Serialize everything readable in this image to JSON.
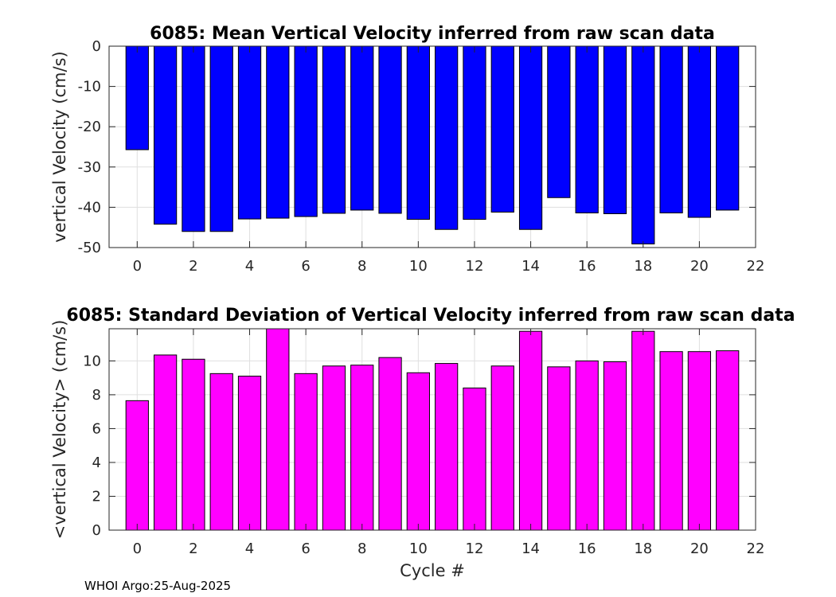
{
  "chart_data": [
    {
      "type": "bar",
      "title": "6085: Mean Vertical Velocity inferred from raw scan data",
      "xlabel": "",
      "ylabel": "vertical Velocity (cm/s)",
      "color": "#0000ff",
      "x": [
        0,
        1,
        2,
        3,
        4,
        5,
        6,
        7,
        8,
        9,
        10,
        11,
        12,
        13,
        14,
        15,
        16,
        17,
        18,
        19,
        20,
        21
      ],
      "values": [
        -25.7,
        -44.2,
        -46.0,
        -46.0,
        -42.9,
        -42.7,
        -42.3,
        -41.5,
        -40.7,
        -41.5,
        -43.0,
        -45.5,
        -43.0,
        -41.2,
        -45.5,
        -37.6,
        -41.4,
        -41.6,
        -49.1,
        -41.4,
        -42.5,
        -40.7
      ],
      "xlim": [
        -1,
        22
      ],
      "ylim": [
        -50,
        0
      ],
      "xticks": [
        0,
        2,
        4,
        6,
        8,
        10,
        12,
        14,
        16,
        18,
        20,
        22
      ],
      "yticks": [
        0,
        -10,
        -20,
        -30,
        -40,
        -50
      ],
      "grid": true
    },
    {
      "type": "bar",
      "title": "6085: Standard Deviation of Vertical Velocity inferred from raw scan data",
      "xlabel": "Cycle #",
      "ylabel": "<vertical Velocity> (cm/s)",
      "color": "#ff00ff",
      "x": [
        0,
        1,
        2,
        3,
        4,
        5,
        6,
        7,
        8,
        9,
        10,
        11,
        12,
        13,
        14,
        15,
        16,
        17,
        18,
        19,
        20,
        21
      ],
      "values": [
        7.65,
        10.35,
        10.1,
        9.25,
        9.1,
        11.95,
        9.25,
        9.7,
        9.75,
        10.2,
        9.3,
        9.85,
        8.4,
        9.7,
        11.75,
        9.65,
        10.0,
        9.95,
        11.75,
        10.55,
        10.55,
        10.6
      ],
      "xlim": [
        -1,
        22
      ],
      "ylim": [
        0,
        11.9
      ],
      "xticks": [
        0,
        2,
        4,
        6,
        8,
        10,
        12,
        14,
        16,
        18,
        20,
        22
      ],
      "yticks": [
        0,
        2,
        4,
        6,
        8,
        10
      ],
      "grid": true
    }
  ],
  "footer": "WHOI Argo:25-Aug-2025"
}
